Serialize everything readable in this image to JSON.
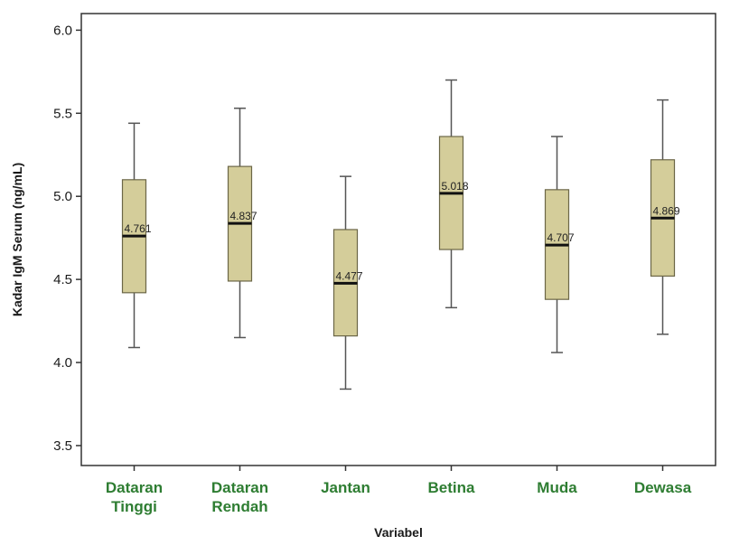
{
  "chart_data": {
    "type": "boxplot",
    "xlabel": "Variabel",
    "ylabel": "Kadar IgM Serum (ng/mL)",
    "ylim": [
      3.38,
      6.1
    ],
    "yticks": [
      "3.5",
      "4.0",
      "4.5",
      "5.0",
      "5.5",
      "6.0"
    ],
    "grid": false,
    "categories": [
      {
        "lines": [
          "Dataran",
          "Tinggi"
        ],
        "min": 4.09,
        "q1": 4.42,
        "median": 4.761,
        "q3": 5.1,
        "max": 5.44,
        "label": "4.761"
      },
      {
        "lines": [
          "Dataran",
          "Rendah"
        ],
        "min": 4.15,
        "q1": 4.49,
        "median": 4.837,
        "q3": 5.18,
        "max": 5.53,
        "label": "4.837"
      },
      {
        "lines": [
          "Jantan"
        ],
        "min": 3.84,
        "q1": 4.16,
        "median": 4.477,
        "q3": 4.8,
        "max": 5.12,
        "label": "4.477"
      },
      {
        "lines": [
          "Betina"
        ],
        "min": 4.33,
        "q1": 4.68,
        "median": 5.018,
        "q3": 5.36,
        "max": 5.7,
        "label": "5.018"
      },
      {
        "lines": [
          "Muda"
        ],
        "min": 4.06,
        "q1": 4.38,
        "median": 4.707,
        "q3": 5.04,
        "max": 5.36,
        "label": "4.707"
      },
      {
        "lines": [
          "Dewasa"
        ],
        "min": 4.17,
        "q1": 4.52,
        "median": 4.869,
        "q3": 5.22,
        "max": 5.58,
        "label": "4.869"
      }
    ]
  },
  "colors": {
    "box_fill": "#d4cd9a",
    "box_stroke": "#6b6646",
    "median_line": "#111111",
    "whisker": "#555555",
    "category_text": "#2e7d32",
    "frame": "#333333"
  }
}
